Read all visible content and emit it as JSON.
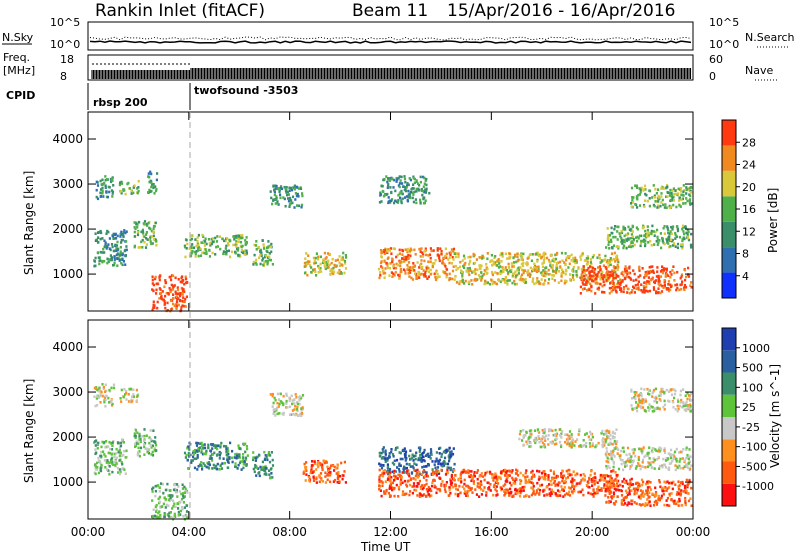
{
  "header": {
    "station": "Rankin Inlet (fitACF)",
    "beam": "Beam 11",
    "date_range": "15/Apr/2016 - 16/Apr/2016"
  },
  "strips": {
    "nsky_label": "N.Sky",
    "nsky_ticks": [
      "10^5",
      "10^0"
    ],
    "nsearch_label": "N.Search",
    "nsearch_ticks": [
      "10^5",
      "10^0"
    ],
    "freq_label_1": "Freq.",
    "freq_label_2": "[MHz]",
    "freq_ticks": [
      "18",
      "8"
    ],
    "nave_label": "Nave",
    "nave_ticks": [
      "60",
      "0"
    ],
    "cpid_label": "CPID",
    "cpid_segments": [
      {
        "name": "rbsp 200",
        "start_hour": 0
      },
      {
        "name": "twofsound -3503",
        "start_hour": 4
      }
    ]
  },
  "colors": {
    "power": [
      "#1030ff",
      "#2f6fb0",
      "#3a8f6a",
      "#4fb04a",
      "#d8c83a",
      "#f08a20",
      "#ff3a10"
    ],
    "velocity": [
      "#ff1010",
      "#ff5a10",
      "#ff9020",
      "#c8c8c8",
      "#5ec43a",
      "#3a8f6a",
      "#2a5fa0",
      "#1f3fb0"
    ]
  },
  "chart_data": [
    {
      "type": "heatmap",
      "name": "power",
      "ylabel": "Slant Range [km]",
      "yticks": [
        "1000",
        "2000",
        "3000",
        "4000"
      ],
      "ylim": [
        180,
        4600
      ],
      "xlim": [
        0,
        24
      ],
      "xticks": [
        "00:00",
        "04:00",
        "08:00",
        "12:00",
        "16:00",
        "20:00",
        "00:00"
      ],
      "colorbar_label": "Power [dB]",
      "colorbar_ticks": [
        "4",
        "8",
        "12",
        "16",
        "20",
        "24",
        "28"
      ],
      "regions": [
        {
          "x": [
            0.3,
            1.0
          ],
          "y": [
            2700,
            3200
          ],
          "level": 2
        },
        {
          "x": [
            1.2,
            2.0
          ],
          "y": [
            2800,
            3100
          ],
          "level": 3
        },
        {
          "x": [
            2.3,
            2.7
          ],
          "y": [
            2800,
            3300
          ],
          "level": 2
        },
        {
          "x": [
            0.2,
            1.5
          ],
          "y": [
            1200,
            2000
          ],
          "level": 2
        },
        {
          "x": [
            1.8,
            2.7
          ],
          "y": [
            1600,
            2200
          ],
          "level": 3
        },
        {
          "x": [
            2.5,
            3.9
          ],
          "y": [
            200,
            1000
          ],
          "level": 6
        },
        {
          "x": [
            3.8,
            6.3
          ],
          "y": [
            1400,
            1900
          ],
          "level": 3
        },
        {
          "x": [
            6.5,
            7.3
          ],
          "y": [
            1200,
            1800
          ],
          "level": 3
        },
        {
          "x": [
            7.2,
            8.5
          ],
          "y": [
            2500,
            3000
          ],
          "level": 2
        },
        {
          "x": [
            8.5,
            10.2
          ],
          "y": [
            1000,
            1500
          ],
          "level": 4
        },
        {
          "x": [
            11.5,
            14.5
          ],
          "y": [
            900,
            1600
          ],
          "level": 5
        },
        {
          "x": [
            11.5,
            13.5
          ],
          "y": [
            2600,
            3200
          ],
          "level": 2
        },
        {
          "x": [
            14.5,
            21.0
          ],
          "y": [
            800,
            1500
          ],
          "level": 4
        },
        {
          "x": [
            19.5,
            23.9
          ],
          "y": [
            600,
            1200
          ],
          "level": 6
        },
        {
          "x": [
            20.5,
            23.9
          ],
          "y": [
            1600,
            2100
          ],
          "level": 3
        },
        {
          "x": [
            21.5,
            23.9
          ],
          "y": [
            2500,
            3000
          ],
          "level": 3
        }
      ]
    },
    {
      "type": "heatmap",
      "name": "velocity",
      "ylabel": "Slant Range [km]",
      "yticks": [
        "1000",
        "2000",
        "3000",
        "4000"
      ],
      "ylim": [
        180,
        4600
      ],
      "xlim": [
        0,
        24
      ],
      "xticks": [
        "00:00",
        "04:00",
        "08:00",
        "12:00",
        "16:00",
        "20:00",
        "00:00"
      ],
      "xlabel": "Time UT",
      "colorbar_label": "Velocity [m s^-1]",
      "colorbar_ticks": [
        "-1000",
        "-500",
        "-100",
        "-25",
        "25",
        "100",
        "500",
        "1000"
      ],
      "regions": [
        {
          "x": [
            0.2,
            1.0
          ],
          "y": [
            2700,
            3200
          ],
          "level": 3
        },
        {
          "x": [
            1.2,
            2.0
          ],
          "y": [
            2800,
            3100
          ],
          "level": 3
        },
        {
          "x": [
            0.2,
            1.5
          ],
          "y": [
            1200,
            2000
          ],
          "level": 4
        },
        {
          "x": [
            1.8,
            2.7
          ],
          "y": [
            1600,
            2200
          ],
          "level": 4
        },
        {
          "x": [
            2.5,
            3.9
          ],
          "y": [
            200,
            1000
          ],
          "level": 4
        },
        {
          "x": [
            3.8,
            6.3
          ],
          "y": [
            1300,
            1900
          ],
          "level": 5
        },
        {
          "x": [
            6.5,
            7.3
          ],
          "y": [
            1100,
            1700
          ],
          "level": 5
        },
        {
          "x": [
            7.2,
            8.5
          ],
          "y": [
            2500,
            3000
          ],
          "level": 3
        },
        {
          "x": [
            8.5,
            10.2
          ],
          "y": [
            1000,
            1500
          ],
          "level": 1
        },
        {
          "x": [
            11.5,
            14.5
          ],
          "y": [
            1200,
            1800
          ],
          "level": 6
        },
        {
          "x": [
            11.5,
            21.0
          ],
          "y": [
            700,
            1300
          ],
          "level": 1
        },
        {
          "x": [
            17.0,
            21.0
          ],
          "y": [
            1800,
            2200
          ],
          "level": 3
        },
        {
          "x": [
            20.5,
            23.9
          ],
          "y": [
            500,
            1100
          ],
          "level": 1
        },
        {
          "x": [
            20.5,
            23.9
          ],
          "y": [
            1300,
            1800
          ],
          "level": 3
        },
        {
          "x": [
            21.5,
            23.9
          ],
          "y": [
            2600,
            3100
          ],
          "level": 3
        }
      ]
    }
  ]
}
